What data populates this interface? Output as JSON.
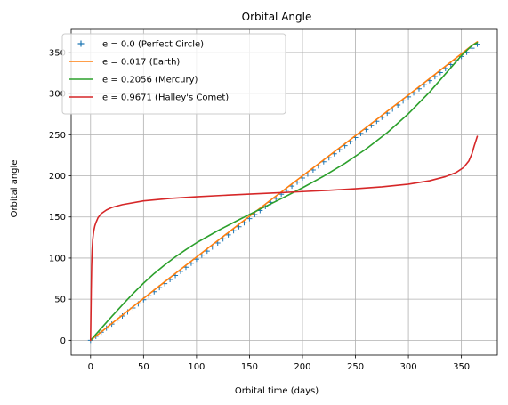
{
  "chart_data": {
    "type": "line",
    "title": "Orbital Angle",
    "xlabel": "Orbital time (days)",
    "ylabel": "Orbital angle",
    "xlim": [
      -18.3,
      383.9
    ],
    "ylim": [
      -18,
      378
    ],
    "x_ticks": [
      0,
      50,
      100,
      150,
      200,
      250,
      300,
      350
    ],
    "y_ticks": [
      0,
      50,
      100,
      150,
      200,
      250,
      300,
      350
    ],
    "grid": true,
    "legend_position": "upper-left",
    "series": [
      {
        "name": "e = 0.0 (Perfect Circle)",
        "style": "markers",
        "marker": "+",
        "color": "#1f77b4",
        "x": [
          0,
          5,
          10,
          15,
          20,
          25,
          30,
          35,
          40,
          45,
          50,
          55,
          60,
          65,
          70,
          75,
          80,
          85,
          90,
          95,
          100,
          105,
          110,
          115,
          120,
          125,
          130,
          135,
          140,
          145,
          150,
          155,
          160,
          165,
          170,
          175,
          180,
          185,
          190,
          195,
          200,
          205,
          210,
          215,
          220,
          225,
          230,
          235,
          240,
          245,
          250,
          255,
          260,
          265,
          270,
          275,
          280,
          285,
          290,
          295,
          300,
          305,
          310,
          315,
          320,
          325,
          330,
          335,
          340,
          345,
          350,
          355,
          360,
          365
        ],
        "y": [
          0,
          4.9,
          9.9,
          14.8,
          19.7,
          24.6,
          29.6,
          34.5,
          39.4,
          44.4,
          49.3,
          54.2,
          59.1,
          64.1,
          69.0,
          74.0,
          78.9,
          83.8,
          88.8,
          93.7,
          98.6,
          103.6,
          108.5,
          113.4,
          118.3,
          123.3,
          128.2,
          133.2,
          138.1,
          143.0,
          147.9,
          152.9,
          157.8,
          162.7,
          167.7,
          172.6,
          177.5,
          182.5,
          187.4,
          192.3,
          197.3,
          202.2,
          207.1,
          212.1,
          217.0,
          221.9,
          226.8,
          231.8,
          236.7,
          241.6,
          246.6,
          251.5,
          256.4,
          261.4,
          266.3,
          271.2,
          276.2,
          281.1,
          286.0,
          291.0,
          295.9,
          300.8,
          305.8,
          310.7,
          315.6,
          320.5,
          325.5,
          330.4,
          335.3,
          340.3,
          345.2,
          350.1,
          355.1,
          360.0
        ]
      },
      {
        "name": "e = 0.017 (Earth)",
        "style": "line",
        "color": "#ff7f0e",
        "x": [
          0,
          10,
          20,
          30,
          40,
          50,
          60,
          70,
          80,
          90,
          100,
          110,
          120,
          130,
          140,
          150,
          160,
          170,
          180,
          190,
          200,
          210,
          220,
          230,
          240,
          250,
          260,
          270,
          280,
          290,
          300,
          310,
          320,
          330,
          340,
          350,
          360,
          365
        ],
        "y": [
          0,
          10.2,
          20.4,
          30.6,
          40.8,
          51.0,
          61.1,
          71.2,
          81.3,
          91.3,
          101.3,
          111.3,
          121.2,
          131.1,
          141.0,
          150.9,
          160.7,
          170.5,
          180.3,
          190.1,
          199.9,
          209.6,
          219.4,
          229.2,
          239.0,
          248.8,
          258.6,
          268.5,
          278.4,
          288.3,
          298.2,
          308.2,
          318.2,
          328.3,
          338.3,
          348.4,
          358.5,
          363.0
        ]
      },
      {
        "name": "e = 0.2056 (Mercury)",
        "style": "line",
        "color": "#2ca02c",
        "x": [
          0,
          10,
          20,
          30,
          40,
          50,
          60,
          70,
          80,
          90,
          100,
          120,
          140,
          160,
          180,
          200,
          220,
          240,
          260,
          280,
          300,
          320,
          340,
          350,
          360,
          365
        ],
        "y": [
          0,
          14.5,
          29.0,
          43.1,
          56.7,
          69.5,
          81.2,
          91.7,
          101.4,
          110.3,
          118.6,
          133.2,
          146.6,
          159.5,
          172.2,
          185.4,
          199.5,
          215.1,
          232.6,
          252.5,
          275.5,
          301.8,
          331.4,
          346.2,
          358.5,
          362.0
        ]
      },
      {
        "name": "e = 0.9671 (Halley's Comet)",
        "style": "line",
        "color": "#d62728",
        "x": [
          0,
          0.3,
          0.6,
          1,
          1.5,
          2,
          3,
          4,
          5,
          7,
          10,
          15,
          20,
          30,
          50,
          75,
          100,
          125,
          150,
          175,
          200,
          225,
          250,
          275,
          300,
          320,
          335,
          345,
          352,
          357,
          360,
          362,
          363.5,
          364.5,
          365
        ],
        "y": [
          0,
          30,
          60,
          90,
          110,
          122,
          133,
          139,
          143,
          149,
          154,
          158.5,
          161.5,
          165,
          169.5,
          172.5,
          174.5,
          176.2,
          177.8,
          179.3,
          180.8,
          182.4,
          184.3,
          186.6,
          189.8,
          194,
          199,
          204,
          210,
          218,
          227,
          236,
          242,
          246,
          248
        ]
      }
    ]
  }
}
